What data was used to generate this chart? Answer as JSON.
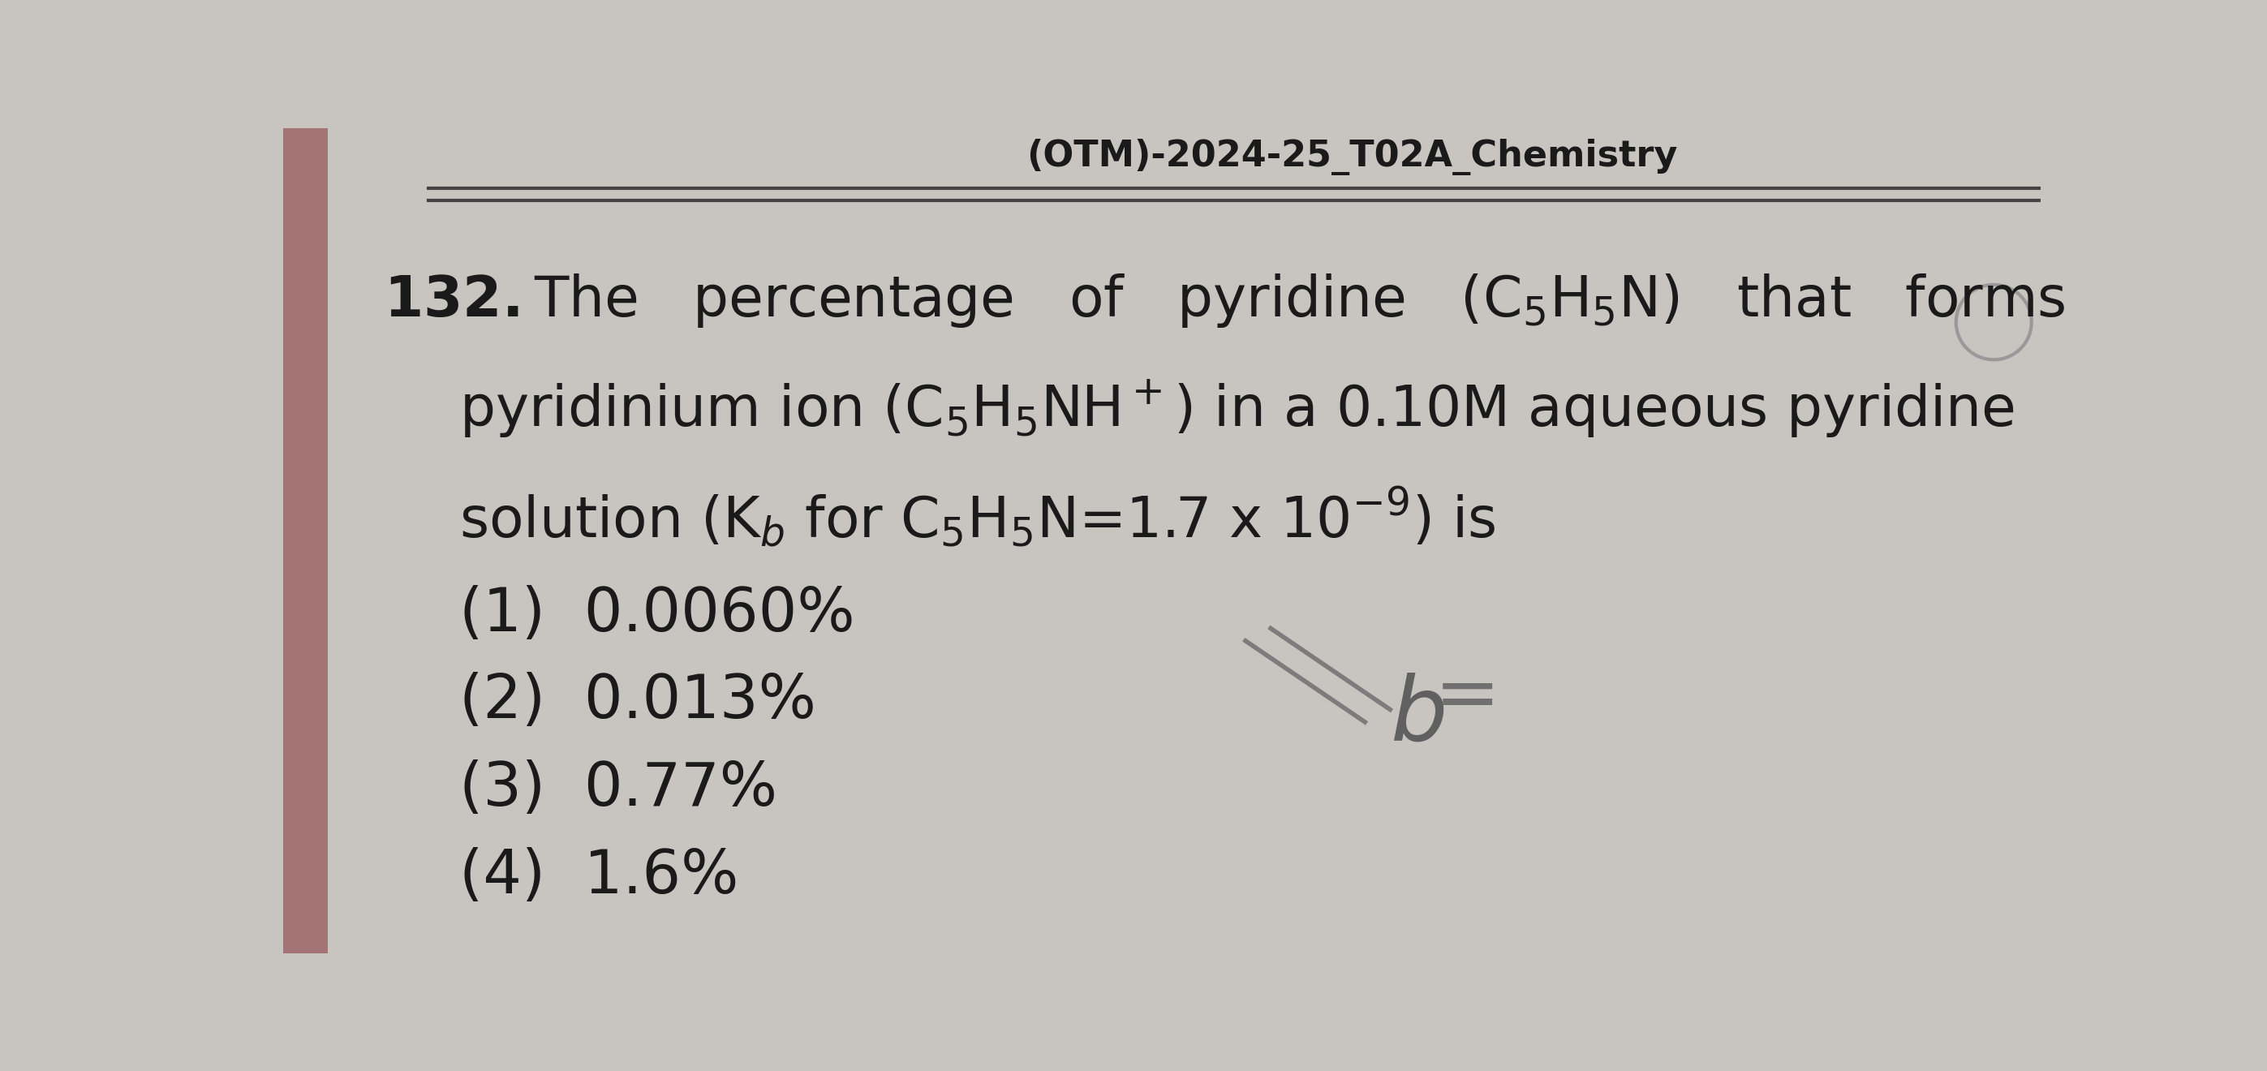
{
  "header": "(OTM)-2024-25_T02A_Chemistry",
  "bg_color": "#c8c4c0",
  "paper_color": "#d4d0cc",
  "text_color": "#1a1a1a",
  "font_size_header": 32,
  "font_size_q_number": 52,
  "font_size_question": 50,
  "font_size_options": 54,
  "line1": "132.The   percentage   of   pyridine   (C$_5$H$_5$N)   that   forms",
  "line2": "pyridinium ion (C$_5$H$_5$NH$^+$) in a 0.10M aqueous pyridine",
  "line3": "solution (K$_b$ for C$_5$H$_5$N=1.7 x 10$^{-9}$) is",
  "options": [
    "(1)  0.0060%",
    "(2)  0.013%",
    "(3)  0.77%",
    "(4)  1.6%"
  ],
  "line_color": "#444444",
  "circle_color": "#999999",
  "annotation_color": "#888888"
}
